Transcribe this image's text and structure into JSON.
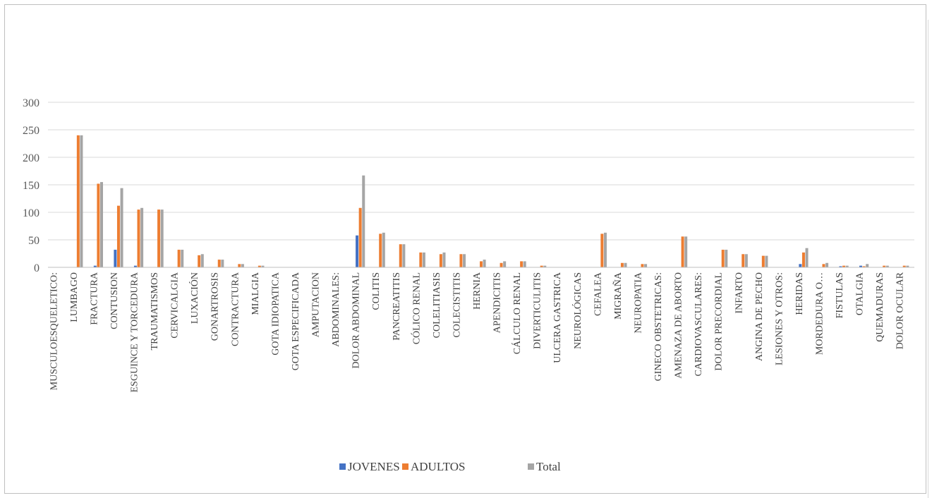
{
  "chart_data": {
    "type": "bar",
    "title": "",
    "xlabel": "",
    "ylabel": "",
    "ylim": [
      0,
      300
    ],
    "yticks": [
      "0",
      "50",
      "100",
      "150",
      "200",
      "250",
      "300"
    ],
    "grid": true,
    "legend_position": "bottom",
    "categories": [
      "MUSCULOESQUELETICO:",
      "LUMBAGO",
      "FRACTURA",
      "CONTUSION",
      "ESGUINCE Y TORCEDURA",
      "TRAUMATISMOS",
      "CERVICALGIA",
      "LUXACIÓN",
      "GONARTROSIS",
      "CONTRACTURA",
      "MIALGIA",
      "GOTA IDIOPATICA",
      "GOTA ESPECIFICADA",
      "AMPUTACION",
      "ABDOMINALES:",
      "DOLOR ABDOMINAL",
      "COLITIS",
      "PANCREATITIS",
      "CÓLICO RENAL",
      "COLELITIASIS",
      "COLECISTITIS",
      "HERNIA",
      "APENDICITIS",
      "CÁLCULO RENAL",
      "DIVERTICULITIS",
      "ULCERA GASTRICA",
      "NEUROLÓGICAS",
      "CEFALEA",
      "MIGRAÑA",
      "NEUROPATIA",
      "GINECO OBSTETRICAS:",
      "AMENAZA DE ABORTO",
      "CARDIOVASCULARES:",
      "DOLOR PRECORDIAL",
      "INFARTO",
      "ANGINA DE PECHO",
      "LESIONES Y OTROS:",
      "HERIDAS",
      "MORDEDURA O…",
      "FISTULAS",
      "OTALGIA",
      "QUEMADURAS",
      "DOLOR OCULAR"
    ],
    "series": [
      {
        "name": "JOVENES",
        "color": "#4472C4",
        "values": [
          0,
          0,
          3,
          32,
          3,
          0,
          0,
          0,
          0,
          0,
          0,
          0,
          0,
          0,
          0,
          58,
          0,
          0,
          0,
          0,
          0,
          0,
          0,
          0,
          0,
          0,
          0,
          0,
          0,
          0,
          0,
          0,
          0,
          0,
          0,
          0,
          0,
          6,
          0,
          2,
          3,
          0,
          0
        ]
      },
      {
        "name": "ADULTOS",
        "color": "#ED7D31",
        "values": [
          0,
          240,
          152,
          112,
          105,
          105,
          32,
          22,
          14,
          6,
          3,
          0,
          0,
          0,
          0,
          108,
          61,
          42,
          27,
          24,
          24,
          11,
          8,
          11,
          3,
          0,
          0,
          61,
          8,
          6,
          0,
          56,
          0,
          32,
          24,
          21,
          0,
          27,
          6,
          3,
          2,
          3,
          3
        ]
      },
      {
        "name": "Total",
        "color": "#A5A5A5",
        "values": [
          0,
          240,
          155,
          144,
          108,
          105,
          32,
          24,
          14,
          6,
          3,
          0,
          0,
          0,
          0,
          167,
          63,
          42,
          27,
          27,
          24,
          14,
          11,
          11,
          3,
          0,
          0,
          63,
          8,
          6,
          0,
          56,
          0,
          32,
          24,
          21,
          0,
          35,
          8,
          3,
          6,
          3,
          3
        ]
      }
    ]
  }
}
